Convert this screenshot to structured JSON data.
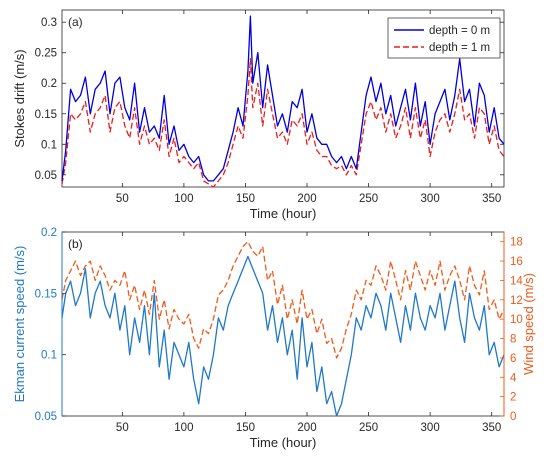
{
  "colors": {
    "depth0": "#0000dd",
    "depth1": "#ee1c1c",
    "ekman": "#1f78c8",
    "wind": "#ee5b1a",
    "axis": "#262626"
  },
  "chart_data": [
    {
      "type": "line",
      "panel_label": "(a)",
      "xlabel": "Time (hour)",
      "ylabel": "Stokes drift (m/s)",
      "xlim": [
        1,
        360
      ],
      "ylim": [
        0.03,
        0.32
      ],
      "xticks": [
        50,
        100,
        150,
        200,
        250,
        300,
        350
      ],
      "yticks": [
        0.05,
        0.1,
        0.15,
        0.2,
        0.25,
        0.3
      ],
      "ytick_labels": [
        "0.05",
        "0.1",
        "0.15",
        "0.2",
        "0.25",
        "0.3"
      ],
      "legend_position": "top-right",
      "grid": false,
      "series": [
        {
          "name": "depth = 0 m",
          "style": "solid",
          "x": [
            1,
            4,
            8,
            12,
            16,
            20,
            24,
            28,
            32,
            36,
            40,
            44,
            48,
            52,
            56,
            60,
            64,
            68,
            72,
            76,
            80,
            84,
            88,
            92,
            96,
            100,
            104,
            108,
            112,
            116,
            120,
            124,
            128,
            132,
            136,
            140,
            144,
            148,
            152,
            154,
            156,
            160,
            164,
            168,
            172,
            176,
            180,
            184,
            188,
            192,
            196,
            200,
            204,
            208,
            212,
            216,
            220,
            224,
            228,
            232,
            236,
            240,
            244,
            248,
            252,
            256,
            260,
            264,
            268,
            272,
            276,
            280,
            284,
            288,
            292,
            296,
            300,
            304,
            308,
            312,
            316,
            320,
            324,
            328,
            332,
            336,
            340,
            344,
            348,
            352,
            356,
            360
          ],
          "y": [
            0.04,
            0.09,
            0.19,
            0.17,
            0.18,
            0.21,
            0.15,
            0.19,
            0.2,
            0.22,
            0.15,
            0.2,
            0.21,
            0.16,
            0.14,
            0.2,
            0.12,
            0.16,
            0.12,
            0.13,
            0.11,
            0.18,
            0.1,
            0.13,
            0.09,
            0.1,
            0.08,
            0.07,
            0.08,
            0.05,
            0.04,
            0.04,
            0.05,
            0.06,
            0.09,
            0.12,
            0.16,
            0.13,
            0.22,
            0.31,
            0.2,
            0.25,
            0.16,
            0.23,
            0.18,
            0.13,
            0.15,
            0.12,
            0.17,
            0.16,
            0.19,
            0.12,
            0.15,
            0.11,
            0.1,
            0.1,
            0.08,
            0.07,
            0.08,
            0.06,
            0.08,
            0.06,
            0.12,
            0.18,
            0.21,
            0.17,
            0.2,
            0.15,
            0.18,
            0.13,
            0.16,
            0.19,
            0.14,
            0.2,
            0.13,
            0.17,
            0.1,
            0.15,
            0.17,
            0.19,
            0.14,
            0.18,
            0.24,
            0.17,
            0.19,
            0.13,
            0.2,
            0.18,
            0.12,
            0.16,
            0.11,
            0.1
          ]
        },
        {
          "name": "depth = 1 m",
          "style": "dashed",
          "x": [
            1,
            4,
            8,
            12,
            16,
            20,
            24,
            28,
            32,
            36,
            40,
            44,
            48,
            52,
            56,
            60,
            64,
            68,
            72,
            76,
            80,
            84,
            88,
            92,
            96,
            100,
            104,
            108,
            112,
            116,
            120,
            124,
            128,
            132,
            136,
            140,
            144,
            148,
            152,
            154,
            156,
            160,
            164,
            168,
            172,
            176,
            180,
            184,
            188,
            192,
            196,
            200,
            204,
            208,
            212,
            216,
            220,
            224,
            228,
            232,
            236,
            240,
            244,
            248,
            252,
            256,
            260,
            264,
            268,
            272,
            276,
            280,
            284,
            288,
            292,
            296,
            300,
            304,
            308,
            312,
            316,
            320,
            324,
            328,
            332,
            336,
            340,
            344,
            348,
            352,
            356,
            360
          ],
          "y": [
            0.035,
            0.07,
            0.15,
            0.14,
            0.15,
            0.17,
            0.12,
            0.15,
            0.16,
            0.18,
            0.12,
            0.16,
            0.17,
            0.13,
            0.11,
            0.16,
            0.1,
            0.13,
            0.1,
            0.11,
            0.09,
            0.14,
            0.08,
            0.11,
            0.07,
            0.08,
            0.07,
            0.06,
            0.07,
            0.04,
            0.035,
            0.03,
            0.04,
            0.05,
            0.07,
            0.1,
            0.13,
            0.11,
            0.18,
            0.24,
            0.16,
            0.2,
            0.13,
            0.19,
            0.15,
            0.11,
            0.12,
            0.1,
            0.14,
            0.13,
            0.15,
            0.1,
            0.12,
            0.09,
            0.08,
            0.08,
            0.065,
            0.06,
            0.065,
            0.05,
            0.065,
            0.05,
            0.1,
            0.15,
            0.17,
            0.14,
            0.16,
            0.12,
            0.15,
            0.11,
            0.13,
            0.16,
            0.11,
            0.16,
            0.11,
            0.14,
            0.08,
            0.12,
            0.14,
            0.15,
            0.12,
            0.15,
            0.19,
            0.14,
            0.15,
            0.11,
            0.16,
            0.15,
            0.1,
            0.13,
            0.09,
            0.08
          ]
        }
      ]
    },
    {
      "type": "line",
      "panel_label": "(b)",
      "xlabel": "Time (hour)",
      "ylabel": "Ekman current speed (m/s)",
      "y2label": "Wind speed (m/s)",
      "xlim": [
        1,
        360
      ],
      "ylim": [
        0.05,
        0.2
      ],
      "y2lim": [
        0,
        19
      ],
      "xticks": [
        50,
        100,
        150,
        200,
        250,
        300,
        350
      ],
      "yticks": [
        0.05,
        0.1,
        0.15,
        0.2
      ],
      "ytick_labels": [
        "0.05",
        "0.1",
        "0.15",
        "0.2"
      ],
      "y2ticks": [
        0,
        2,
        4,
        6,
        8,
        10,
        12,
        14,
        16,
        18
      ],
      "grid": false,
      "series": [
        {
          "axis": "left",
          "style": "solid",
          "x": [
            1,
            4,
            8,
            12,
            16,
            20,
            24,
            28,
            32,
            36,
            40,
            44,
            48,
            52,
            56,
            60,
            64,
            68,
            72,
            76,
            80,
            84,
            88,
            92,
            96,
            100,
            104,
            108,
            112,
            116,
            120,
            124,
            128,
            132,
            136,
            140,
            144,
            148,
            152,
            156,
            160,
            164,
            168,
            172,
            176,
            180,
            184,
            188,
            192,
            196,
            200,
            204,
            208,
            212,
            216,
            220,
            224,
            228,
            232,
            236,
            240,
            244,
            248,
            252,
            256,
            260,
            264,
            268,
            272,
            276,
            280,
            284,
            288,
            292,
            296,
            300,
            304,
            308,
            312,
            316,
            320,
            324,
            328,
            332,
            336,
            340,
            344,
            348,
            352,
            356,
            360
          ],
          "y": [
            0.13,
            0.15,
            0.16,
            0.14,
            0.15,
            0.17,
            0.13,
            0.15,
            0.16,
            0.14,
            0.13,
            0.15,
            0.12,
            0.14,
            0.1,
            0.13,
            0.11,
            0.14,
            0.1,
            0.15,
            0.09,
            0.12,
            0.08,
            0.11,
            0.1,
            0.09,
            0.11,
            0.08,
            0.06,
            0.09,
            0.08,
            0.1,
            0.13,
            0.12,
            0.14,
            0.15,
            0.16,
            0.17,
            0.18,
            0.17,
            0.16,
            0.15,
            0.12,
            0.14,
            0.11,
            0.13,
            0.1,
            0.12,
            0.08,
            0.13,
            0.09,
            0.11,
            0.07,
            0.09,
            0.06,
            0.07,
            0.05,
            0.06,
            0.08,
            0.1,
            0.13,
            0.12,
            0.14,
            0.13,
            0.15,
            0.14,
            0.12,
            0.15,
            0.13,
            0.11,
            0.14,
            0.12,
            0.15,
            0.13,
            0.12,
            0.14,
            0.13,
            0.15,
            0.12,
            0.14,
            0.16,
            0.13,
            0.11,
            0.15,
            0.13,
            0.12,
            0.14,
            0.1,
            0.11,
            0.09,
            0.1
          ]
        },
        {
          "axis": "right",
          "style": "dashed",
          "x": [
            1,
            4,
            8,
            12,
            16,
            20,
            24,
            28,
            32,
            36,
            40,
            44,
            48,
            52,
            56,
            60,
            64,
            68,
            72,
            76,
            80,
            84,
            88,
            92,
            96,
            100,
            104,
            108,
            112,
            116,
            120,
            124,
            128,
            132,
            136,
            140,
            144,
            148,
            152,
            156,
            160,
            164,
            168,
            172,
            176,
            180,
            184,
            188,
            192,
            196,
            200,
            204,
            208,
            212,
            216,
            220,
            224,
            228,
            232,
            236,
            240,
            244,
            248,
            252,
            256,
            260,
            264,
            268,
            272,
            276,
            280,
            284,
            288,
            292,
            296,
            300,
            304,
            308,
            312,
            316,
            320,
            324,
            328,
            332,
            336,
            340,
            344,
            348,
            352,
            356,
            360
          ],
          "y": [
            12,
            14,
            15,
            16,
            14.5,
            15.5,
            16,
            14,
            15.5,
            14.5,
            13,
            14,
            13.5,
            15,
            12,
            13.5,
            11,
            13,
            10.5,
            14,
            10,
            12,
            9,
            11,
            10,
            9.5,
            10.5,
            8,
            7,
            9,
            8.5,
            10,
            12.5,
            13,
            14,
            15.5,
            16.5,
            17.5,
            18,
            17,
            16.5,
            17.5,
            14,
            15,
            11.5,
            13.5,
            10,
            12,
            9.5,
            13,
            10,
            11,
            8.5,
            10,
            7.5,
            8,
            6,
            7,
            9,
            10.5,
            13,
            12,
            14,
            13.5,
            15.5,
            14.5,
            13,
            16,
            14,
            12,
            15,
            13,
            16,
            14.5,
            13,
            15,
            13.5,
            16,
            13,
            14.5,
            15.5,
            14,
            12,
            15.5,
            13.5,
            12.5,
            15,
            11,
            12,
            10,
            11
          ]
        }
      ]
    }
  ]
}
